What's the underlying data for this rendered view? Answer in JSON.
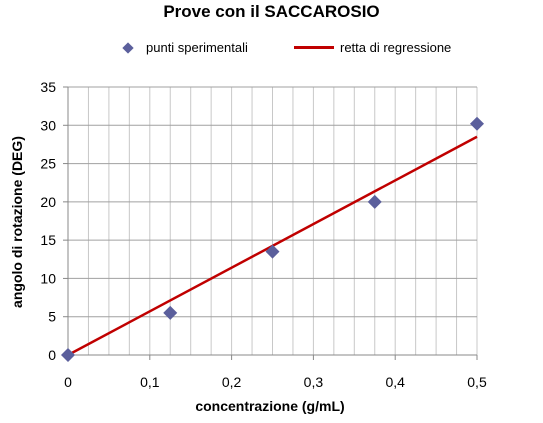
{
  "chart_data": {
    "type": "scatter",
    "title": "Prove con il SACCAROSIO",
    "xlabel": "concentrazione (g/mL)",
    "ylabel": "angolo di rotazione (DEG)",
    "xlim": [
      0,
      0.5
    ],
    "ylim": [
      0,
      35
    ],
    "x_ticks": [
      "0",
      "0,1",
      "0,2",
      "0,3",
      "0,4",
      "0,5"
    ],
    "y_ticks": [
      "0",
      "5",
      "10",
      "15",
      "20",
      "25",
      "30",
      "35"
    ],
    "grid": true,
    "legend_placement": "top",
    "series": [
      {
        "name": "punti sperimentali",
        "type": "scatter",
        "color": "#5b5f9c",
        "marker": "diamond",
        "x": [
          0,
          0.125,
          0.25,
          0.375,
          0.5
        ],
        "y": [
          0,
          5.5,
          13.5,
          20,
          30.2
        ]
      },
      {
        "name": "retta di regressione",
        "type": "line",
        "color": "#c00000",
        "x": [
          0,
          0.5
        ],
        "y": [
          0,
          28.5
        ]
      }
    ]
  }
}
